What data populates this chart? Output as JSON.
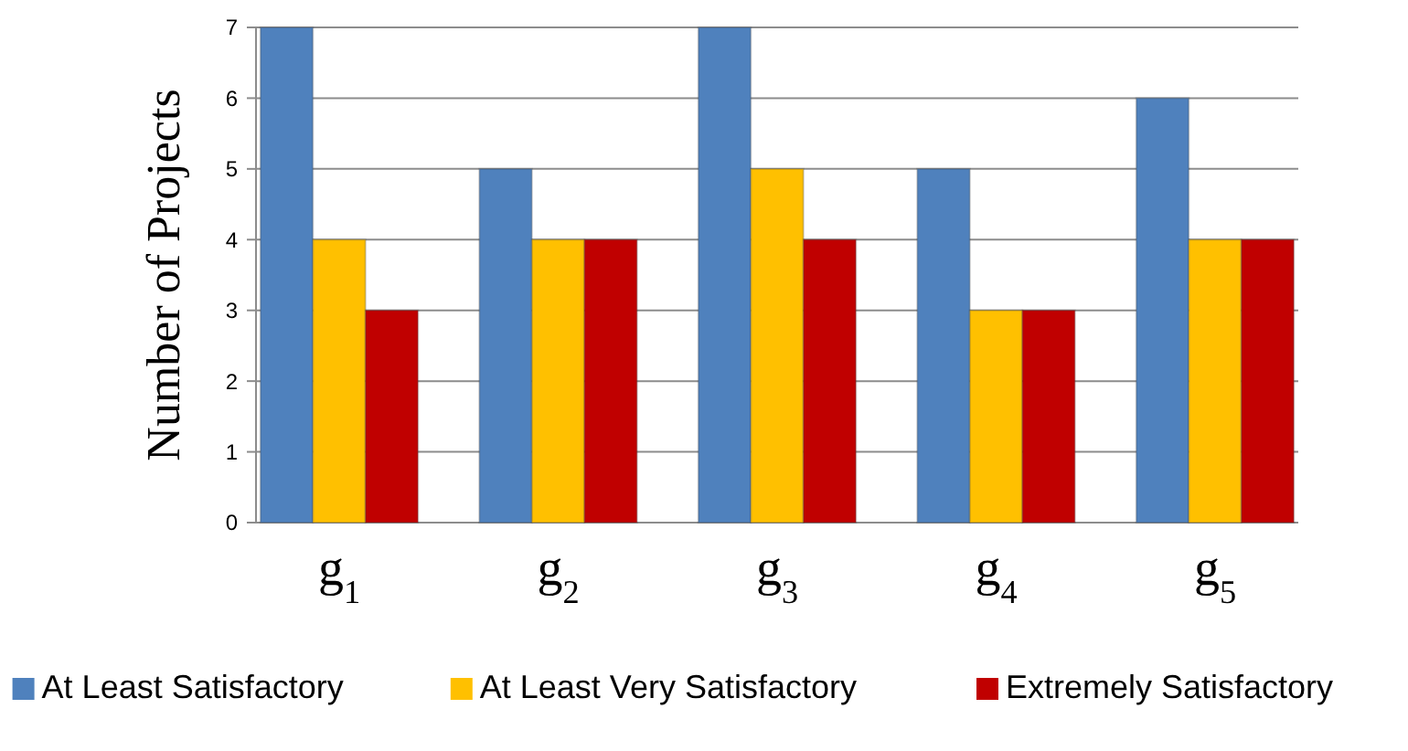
{
  "chart_data": {
    "type": "bar",
    "ylabel": "Number of Projects",
    "categories": [
      "g$_{1}$",
      "g$_{2}$",
      "g$_{3}$",
      "g$_{4}$",
      "g$_{5}$"
    ],
    "series": [
      {
        "name": "At Least Satisfactory",
        "color": "#4f81bd",
        "values": [
          7,
          5,
          7,
          5,
          6
        ]
      },
      {
        "name": "At Least Very Satisfactory",
        "color": "#ffc000",
        "values": [
          4,
          4,
          5,
          3,
          4
        ]
      },
      {
        "name": "Extremely Satisfactory",
        "color": "#c00000",
        "values": [
          3,
          4,
          4,
          3,
          4
        ]
      }
    ],
    "ylim": [
      0,
      7
    ],
    "yticks": [
      0,
      1,
      2,
      3,
      4,
      5,
      6,
      7
    ],
    "grid": "y",
    "legend": "bottom"
  }
}
